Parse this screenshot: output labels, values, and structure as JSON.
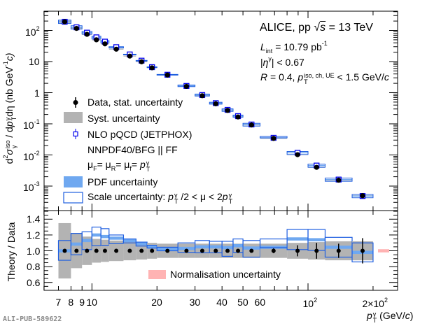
{
  "colors": {
    "syst": "#b3b3b3",
    "pdf": "#6fa8f0",
    "scale": "#1f5fe0",
    "nlo_marker": "#0000ee",
    "data": "#000000",
    "norm": "#ffb3b3"
  },
  "chart_data": [
    {
      "type": "scatter",
      "panel": "top",
      "xscale": "log",
      "yscale": "log",
      "xlim": [
        6.0,
        260
      ],
      "ylim": [
        0.00016,
        420
      ],
      "ylabel": {
        "main": "d",
        "sup2": "2",
        "sigma": "σ",
        "sub_gamma": "γ",
        "sup_iso": "iso",
        "mid": " / d",
        "p": "p",
        "sup_gamma": "γ",
        "sub_T": "T",
        "eta": "dη",
        "unit": "  (nb GeV",
        "unit_sup": "-1",
        "unit_end": "c)"
      },
      "yticks": [
        {
          "v": 100,
          "b": "10",
          "e": "2"
        },
        {
          "v": 10,
          "b": "10",
          "e": ""
        },
        {
          "v": 1,
          "b": "1",
          "e": ""
        },
        {
          "v": 0.1,
          "b": "10",
          "e": "-1"
        },
        {
          "v": 0.01,
          "b": "10",
          "e": "-2"
        },
        {
          "v": 0.001,
          "b": "10",
          "e": "-3"
        }
      ],
      "bins": [
        [
          7,
          8
        ],
        [
          8,
          9
        ],
        [
          9,
          10
        ],
        [
          10,
          11
        ],
        [
          11,
          12
        ],
        [
          12,
          14
        ],
        [
          14,
          16
        ],
        [
          16,
          18
        ],
        [
          18,
          20
        ],
        [
          20,
          25
        ],
        [
          25,
          30
        ],
        [
          30,
          35
        ],
        [
          35,
          40
        ],
        [
          40,
          45
        ],
        [
          45,
          50
        ],
        [
          50,
          60
        ],
        [
          60,
          80
        ],
        [
          80,
          100
        ],
        [
          100,
          120
        ],
        [
          120,
          160
        ],
        [
          160,
          200
        ]
      ],
      "data": [
        190,
        116,
        75,
        50,
        37,
        25,
        15,
        9.8,
        6.3,
        3.7,
        1.6,
        0.8,
        0.44,
        0.27,
        0.166,
        0.092,
        0.034,
        0.0102,
        0.004,
        0.00155,
        0.00049
      ],
      "stat_rel": [
        0.01,
        0.01,
        0.01,
        0.01,
        0.01,
        0.01,
        0.01,
        0.01,
        0.01,
        0.01,
        0.01,
        0.01,
        0.01,
        0.01,
        0.02,
        0.02,
        0.03,
        0.07,
        0.1,
        0.09,
        0.16
      ],
      "syst_rel": [
        0.35,
        0.22,
        0.18,
        0.15,
        0.14,
        0.13,
        0.12,
        0.11,
        0.1,
        0.09,
        0.09,
        0.09,
        0.09,
        0.09,
        0.09,
        0.09,
        0.09,
        0.1,
        0.11,
        0.12,
        0.12
      ]
    },
    {
      "type": "scatter",
      "panel": "ratio",
      "xscale": "log",
      "xlim": [
        6.0,
        260
      ],
      "ylim": [
        0.5,
        1.5
      ],
      "ylabel": "Theory / Data",
      "yticks": [
        "1.4",
        "1.2",
        "1.0",
        "0.8",
        "0.6"
      ],
      "xticks": [
        {
          "v": 7,
          "b": "7",
          "e": ""
        },
        {
          "v": 8,
          "b": "8",
          "e": ""
        },
        {
          "v": 9,
          "b": "9",
          "e": ""
        },
        {
          "v": 10,
          "b": "10",
          "e": ""
        },
        {
          "v": 20,
          "b": "20",
          "e": ""
        },
        {
          "v": 30,
          "b": "30",
          "e": ""
        },
        {
          "v": 40,
          "b": "40",
          "e": ""
        },
        {
          "v": 50,
          "b": "50",
          "e": ""
        },
        {
          "v": 60,
          "b": "60",
          "e": ""
        },
        {
          "v": 100,
          "b": "10",
          "e": "2"
        },
        {
          "v": 200,
          "b": "2×10",
          "e": "2"
        }
      ],
      "xlabel": {
        "p": "p",
        "sup": "γ",
        "sub": "T",
        "unit": " (GeV/",
        "c": "c",
        "close": ")"
      },
      "nlo_ratio": [
        1.0,
        1.085,
        1.13,
        1.2,
        1.18,
        1.16,
        1.13,
        1.09,
        1.05,
        1.02,
        1.03,
        1.05,
        1.05,
        1.04,
        1.065,
        1.035,
        1.045,
        1.15,
        1.14,
        1.045,
        0.98
      ],
      "pdf_halfwidth": 0.02,
      "scale_high": [
        1.13,
        1.22,
        1.24,
        1.3,
        1.28,
        1.2,
        1.15,
        1.11,
        1.07,
        1.045,
        1.1,
        1.13,
        1.12,
        1.12,
        1.15,
        1.13,
        1.15,
        1.27,
        1.27,
        1.17,
        1.1
      ],
      "scale_low": [
        0.88,
        0.95,
        1.015,
        1.065,
        1.07,
        1.09,
        1.1,
        1.06,
        1.035,
        1.0,
        0.98,
        0.975,
        0.975,
        0.93,
        0.98,
        0.92,
        1.04,
        1.015,
        1.005,
        0.92,
        0.86
      ],
      "normalisation_halfwidth": 0.02
    }
  ],
  "legend": {
    "data": "Data, stat. uncertainty",
    "syst": "Syst. uncertainty",
    "nlo": "NLO pQCD (JETPHOX)",
    "pdfset": "NNPDF40/BFG || FF",
    "mu": {
      "m1": "μ",
      "s1": "F",
      "m2": "= μ",
      "s2": "R",
      "m3": "= μ",
      "s3": "f",
      "m4": "= ",
      "p": "p",
      "sup": "γ",
      "sub": "T"
    },
    "pdf": "PDF uncertainty",
    "scale": {
      "pre": "Scale uncertainty: ",
      "p1": "p",
      "sup1": "γ",
      "sub1": "T",
      "mid": " /2 < μ < 2",
      "p2": "p",
      "sup2": "γ",
      "sub2": "T"
    },
    "norm": "Normalisation uncertainty"
  },
  "annotation": {
    "l1": {
      "pre": "ALICE, pp ",
      "sqrt": "√",
      "s": "s",
      "post": " = 13 TeV"
    },
    "l2": {
      "L": "L",
      "sub": "int",
      "mid": " = 10.79 pb",
      "sup": "-1"
    },
    "l3": {
      "pre": "|",
      "eta": "η",
      "sup": "γ",
      "post": "| < 0.67"
    },
    "l4": {
      "R": "R",
      "mid": " = 0.4, ",
      "p": "p",
      "sup": "iso, ch, UE",
      "sub": "T",
      "post": " < 1.5 GeV/",
      "c": "c"
    }
  },
  "watermark": "ALI-PUB-589622"
}
